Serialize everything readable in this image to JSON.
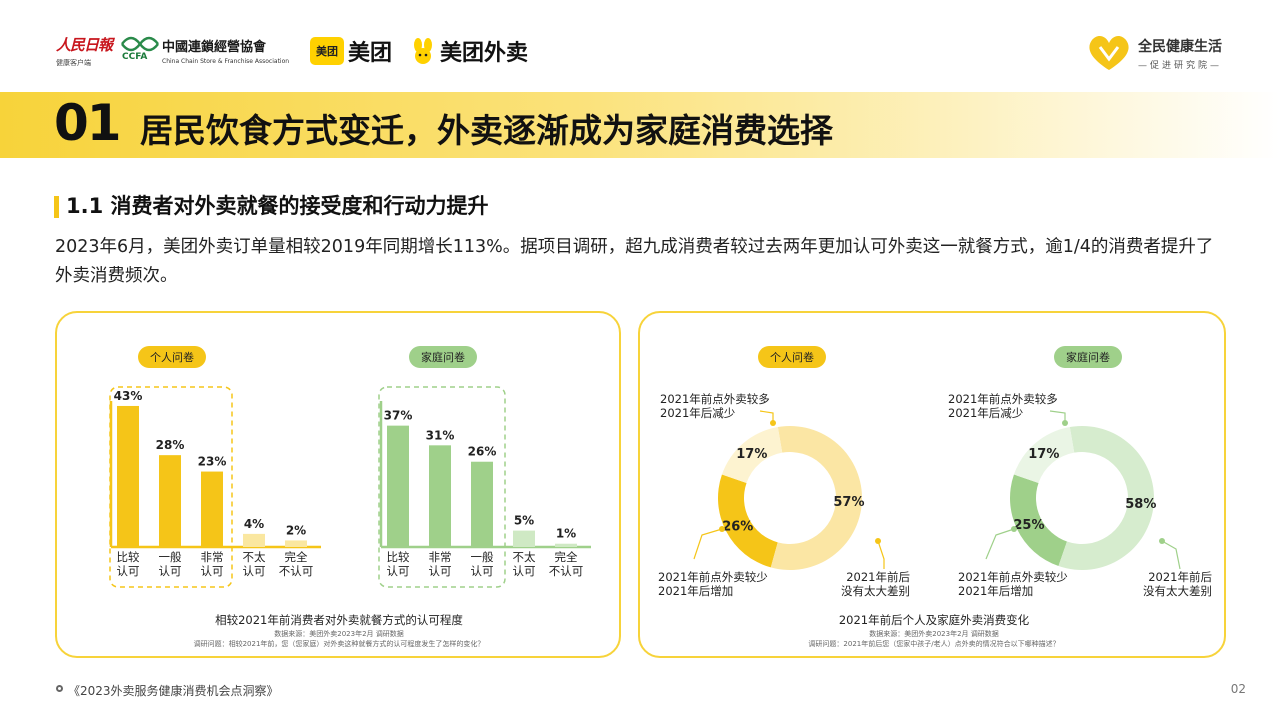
{
  "header": {
    "rmrb": {
      "name": "人民日報",
      "sub": "健康客户端"
    },
    "ccfa": {
      "cn": "中國連鎖經營協會",
      "en": "China Chain Store & Franchise Association",
      "abbr": "CCFA"
    },
    "meituan": {
      "box": "美团",
      "text": "美团"
    },
    "meituan_waimai": {
      "text": "美团外卖"
    },
    "qmjk": {
      "name": "全民健康生活",
      "sub": "—促进研究院—"
    }
  },
  "title": {
    "number": "01",
    "text": "居民饮食方式变迁，外卖逐渐成为家庭消费选择"
  },
  "section": {
    "title": "1.1 消费者对外卖就餐的接受度和行动力提升",
    "paragraph": "2023年6月，美团外卖订单量相较2019年同期增长113%。据项目调研，超九成消费者较过去两年更加认可外卖这一就餐方式，逾1/4的消费者提升了外卖消费频次。"
  },
  "chart_data": [
    {
      "type": "bar",
      "badge": "个人问卷",
      "categories": [
        "比较\n认可",
        "一般\n认可",
        "非常\n认可",
        "不太\n认可",
        "完全\n不认可"
      ],
      "values": [
        43,
        28,
        23,
        4,
        2
      ],
      "labels": [
        "43%",
        "28%",
        "23%",
        "4%",
        "2%"
      ],
      "color": "#f5c518",
      "lightColor": "#fae7a0"
    },
    {
      "type": "bar",
      "badge": "家庭问卷",
      "categories": [
        "比较\n认可",
        "非常\n认可",
        "一般\n认可",
        "不太\n认可",
        "完全\n不认可"
      ],
      "values": [
        37,
        31,
        26,
        5,
        1
      ],
      "labels": [
        "37%",
        "31%",
        "26%",
        "5%",
        "1%"
      ],
      "color": "#9fd08a",
      "lightColor": "#cfe9c4"
    },
    {
      "type": "pie",
      "badge": "个人问卷",
      "slices": [
        {
          "label": "2021年前点外卖较少\n2021年后增加",
          "value": 26,
          "text": "26%",
          "color": "#f5c518"
        },
        {
          "label": "2021年前后\n没有太大差别",
          "value": 57,
          "text": "57%",
          "color": "#fbe6a4"
        },
        {
          "label": "2021年前点外卖较多\n2021年后减少",
          "value": 17,
          "text": "17%",
          "color": "#fdf3d0"
        }
      ]
    },
    {
      "type": "pie",
      "badge": "家庭问卷",
      "slices": [
        {
          "label": "2021年前点外卖较少\n2021年后增加",
          "value": 25,
          "text": "25%",
          "color": "#9fd08a"
        },
        {
          "label": "2021年前后\n没有太大差别",
          "value": 58,
          "text": "58%",
          "color": "#d6ecce"
        },
        {
          "label": "2021年前点外卖较多\n2021年后减少",
          "value": 17,
          "text": "17%",
          "color": "#eaf5e5"
        }
      ]
    }
  ],
  "panel1": {
    "caption": "相较2021年前消费者对外卖就餐方式的认可程度",
    "source1": "数据来源：美团外卖2023年2月 调研数据",
    "source2": "调研问题：相较2021年前，您（您家庭）对外卖这种就餐方式的认可程度发生了怎样的变化？"
  },
  "panel2": {
    "caption": "2021年前后个人及家庭外卖消费变化",
    "source1": "数据来源：美团外卖2023年2月 调研数据",
    "source2": "调研问题：2021年前后您（您家中孩子/老人）点外卖的情况符合以下哪种描述？"
  },
  "footer": {
    "text": "《2023外卖服务健康消费机会点洞察》",
    "page": "02"
  }
}
